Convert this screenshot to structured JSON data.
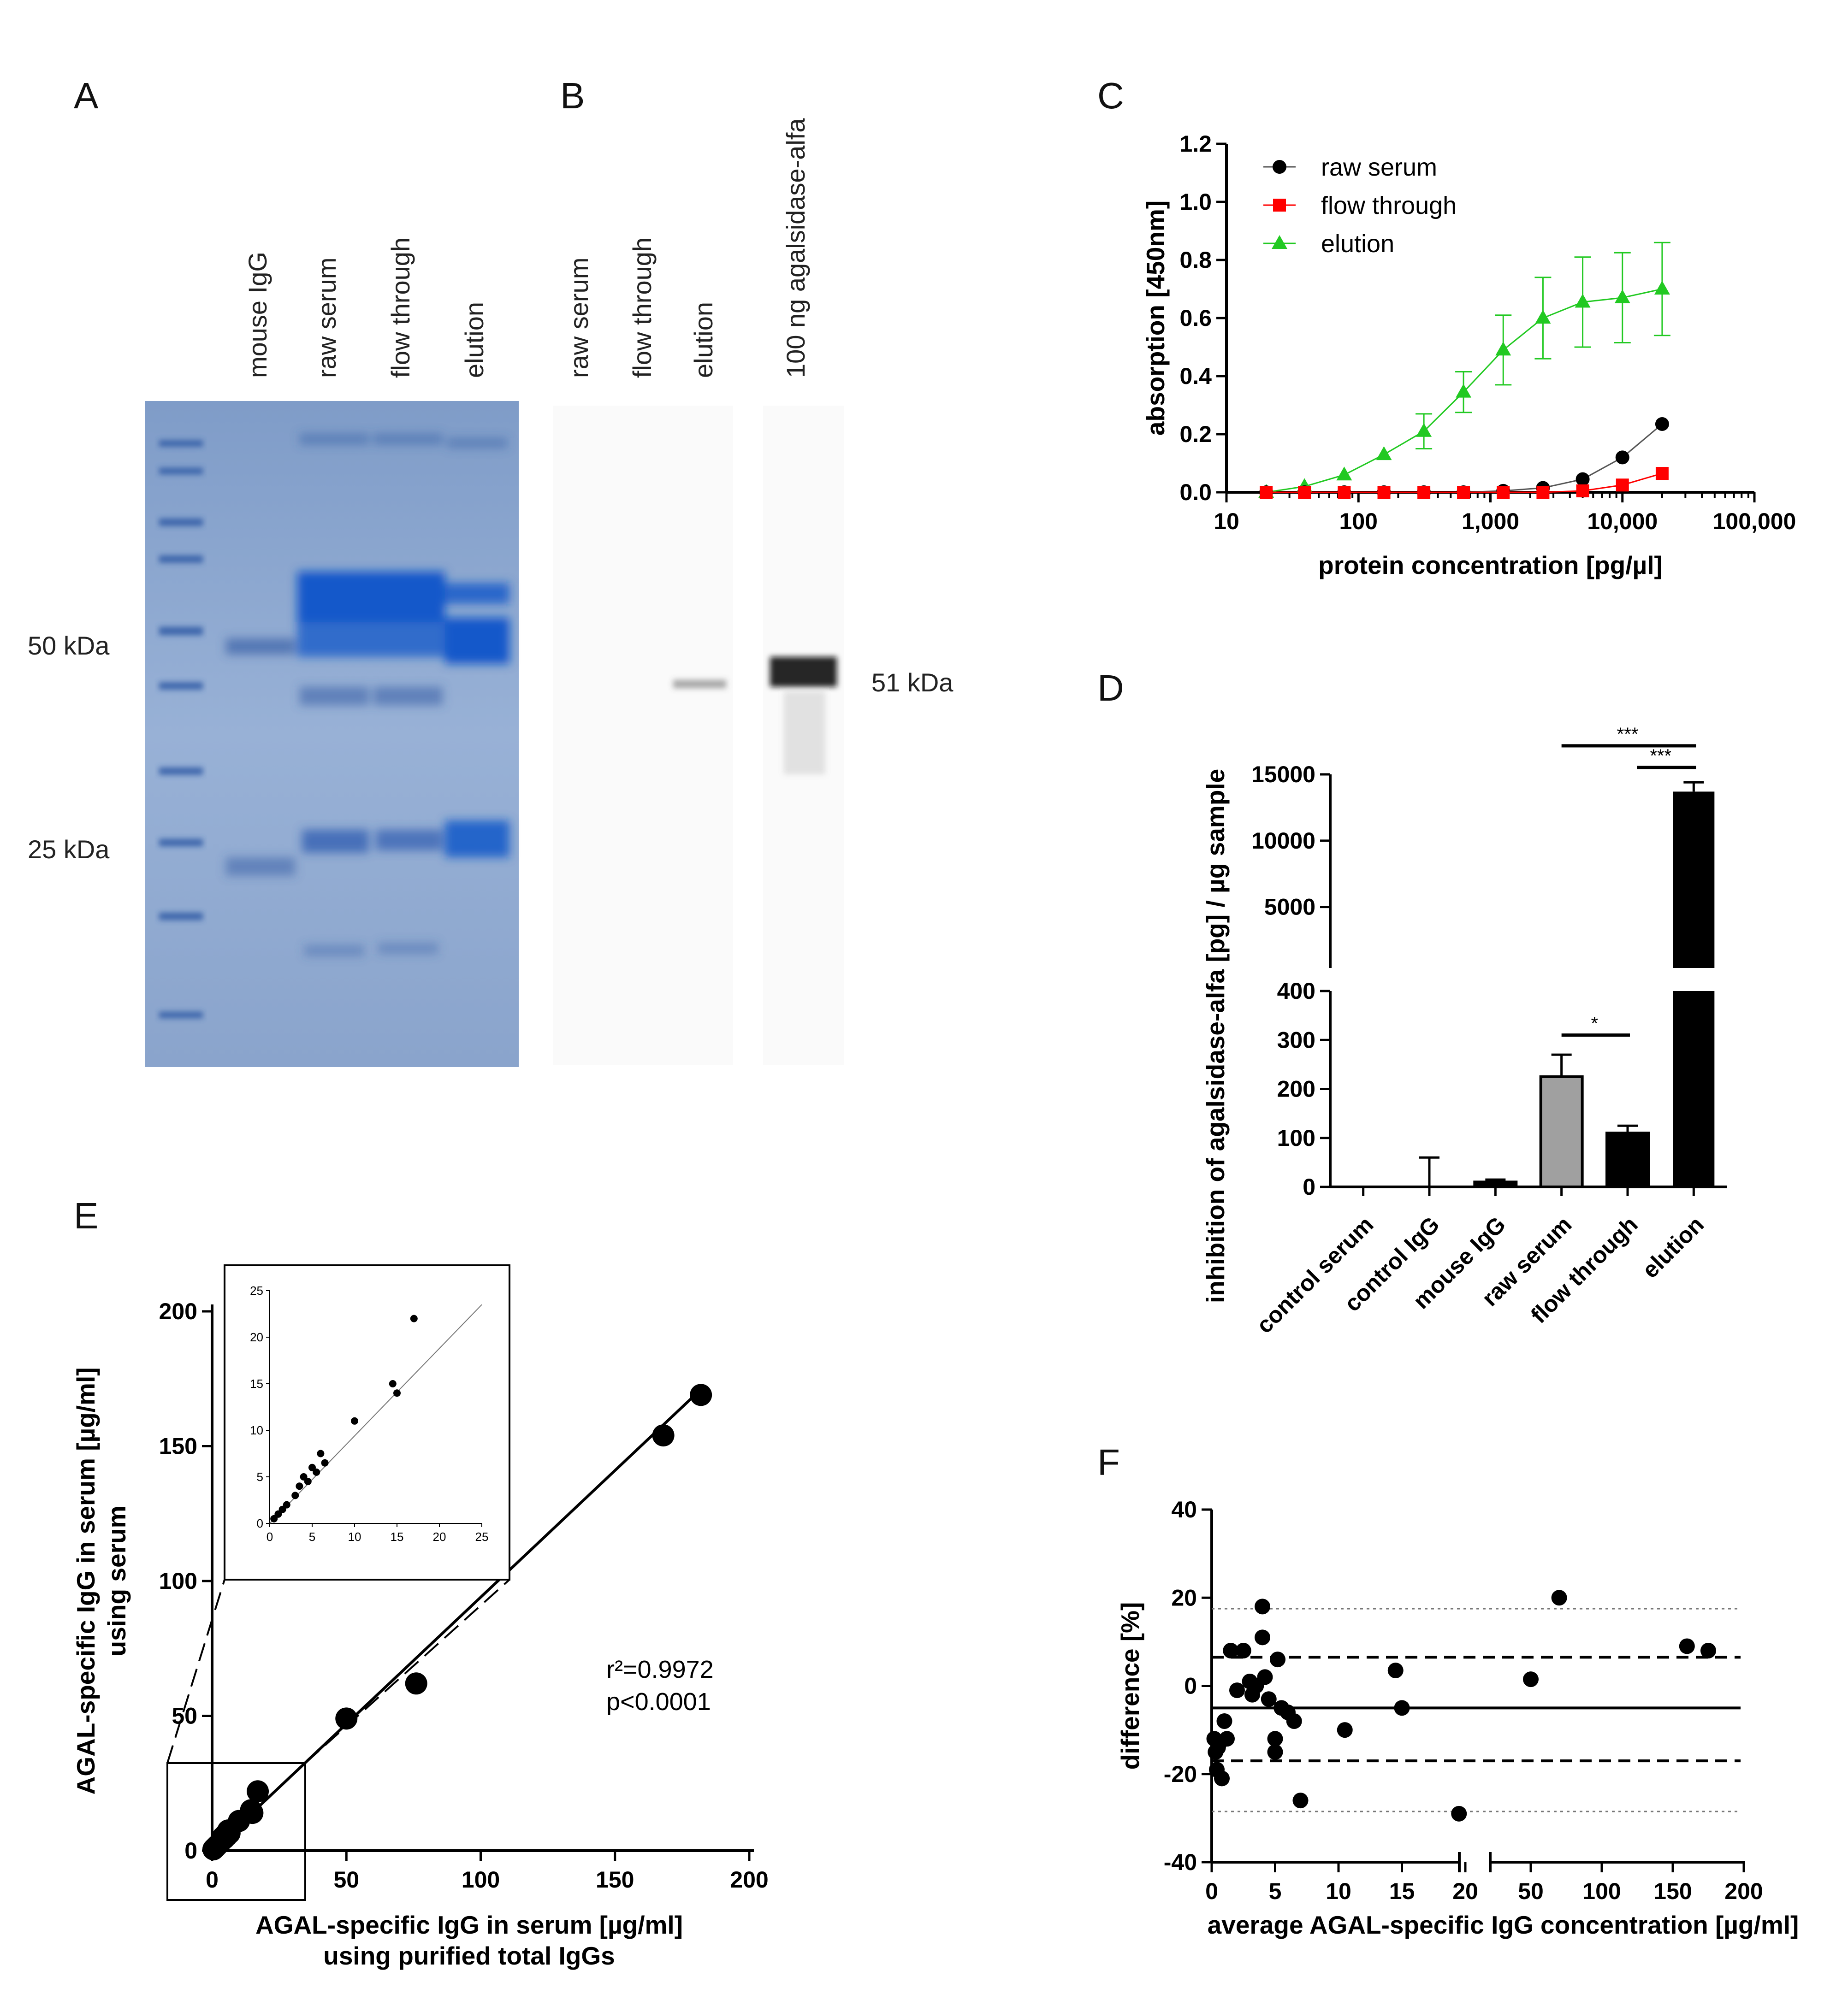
{
  "panels": {
    "A": {
      "label": "A",
      "lane_labels": [
        "mouse IgG",
        "raw serum",
        "flow through",
        "elution"
      ],
      "markers": [
        "50 kDa",
        "25 kDa"
      ]
    },
    "B": {
      "label": "B",
      "lane_labels": [
        "raw serum",
        "flow through",
        "elution",
        "100 ng agalsidase-alfa"
      ],
      "marker": "51 kDa"
    },
    "C": {
      "label": "C"
    },
    "D": {
      "label": "D"
    },
    "E": {
      "label": "E",
      "r2": "r²=0.9972",
      "p": "p<0.0001"
    },
    "F": {
      "label": "F"
    }
  },
  "colors": {
    "raw": "#000000",
    "flow": "#ff0000",
    "elution": "#22c922",
    "gel_bg": "#8fa8d0",
    "bar_gray": "#a0a0a0"
  },
  "chart_data": [
    {
      "id": "C",
      "type": "line",
      "xscale": "log",
      "xlabel": "protein concentration [pg/µl]",
      "ylabel": "absorption [450nm]",
      "xlim": [
        10,
        100000
      ],
      "ylim": [
        0,
        1.2
      ],
      "xticks": [
        "10",
        "100",
        "1,000",
        "10,000",
        "100,000"
      ],
      "yticks": [
        "0.0",
        "0.2",
        "0.4",
        "0.6",
        "0.8",
        "1.0",
        "1.2"
      ],
      "x": [
        20,
        39,
        78,
        156,
        313,
        625,
        1250,
        2500,
        5000,
        10000,
        20000
      ],
      "series": [
        {
          "name": "raw serum",
          "marker": "circle",
          "values": [
            0.0,
            0.0,
            0.0,
            0.0,
            0.0,
            0.0,
            0.005,
            0.015,
            0.045,
            0.12,
            0.235
          ]
        },
        {
          "name": "flow through",
          "marker": "square",
          "values": [
            0.0,
            0.0,
            0.0,
            0.0,
            0.0,
            0.0,
            0.0,
            0.0,
            0.005,
            0.025,
            0.065
          ]
        },
        {
          "name": "elution",
          "marker": "triangle",
          "values": [
            0.0,
            0.02,
            0.06,
            0.13,
            0.21,
            0.345,
            0.49,
            0.6,
            0.655,
            0.67,
            0.7
          ],
          "error": [
            0.0,
            0.0,
            0.0,
            0.0,
            0.06,
            0.07,
            0.12,
            0.14,
            0.155,
            0.155,
            0.16
          ]
        }
      ]
    },
    {
      "id": "D",
      "type": "bar",
      "ylabel": "inhibition of agalsidase-alfa [pg] / µg sample",
      "categories": [
        "control serum",
        "control IgG",
        "mouse IgG",
        "raw serum",
        "flow through",
        "elution"
      ],
      "values": [
        0,
        0,
        10,
        225,
        110,
        13700
      ],
      "error": [
        0,
        60,
        5,
        45,
        15,
        700
      ],
      "lower_axis": {
        "ylim": [
          0,
          400
        ],
        "yticks": [
          "0",
          "100",
          "200",
          "300",
          "400"
        ]
      },
      "upper_axis": {
        "ylim": [
          0,
          15000
        ],
        "yticks": [
          "5000",
          "10000",
          "15000"
        ]
      },
      "significance": [
        {
          "from": "raw serum",
          "to": "flow through",
          "label": "*"
        },
        {
          "from": "flow through",
          "to": "elution",
          "label": "***"
        },
        {
          "from": "raw serum",
          "to": "elution",
          "label": "***"
        }
      ]
    },
    {
      "id": "E",
      "type": "scatter",
      "xlabel": "AGAL-specific IgG in serum [µg/ml]",
      "xlabel2": "using purified total IgGs",
      "ylabel": "AGAL-specific IgG in serum [µg/ml]",
      "ylabel2": "using serum",
      "xlim": [
        0,
        200
      ],
      "ylim": [
        0,
        200
      ],
      "xticks": [
        "0",
        "50",
        "100",
        "150",
        "200"
      ],
      "yticks": [
        "0",
        "50",
        "100",
        "150",
        "200"
      ],
      "x": [
        0.5,
        1,
        1.5,
        2,
        3,
        3.5,
        4,
        4.5,
        5,
        5.5,
        6,
        6.5,
        10,
        14.5,
        15,
        17,
        50,
        76,
        168,
        182
      ],
      "y": [
        0.5,
        1,
        1.5,
        2,
        3,
        4,
        5,
        4.5,
        6,
        5.5,
        7.5,
        6.5,
        11,
        15,
        14,
        22,
        49,
        62,
        154,
        169
      ],
      "fit": [
        [
          0,
          0
        ],
        [
          183,
          172
        ]
      ],
      "inset": {
        "xlim": [
          0,
          25
        ],
        "ylim": [
          0,
          25
        ],
        "xticks": [
          "0",
          "5",
          "10",
          "15",
          "20",
          "25"
        ],
        "yticks": [
          "0",
          "5",
          "10",
          "15",
          "20",
          "25"
        ]
      }
    },
    {
      "id": "F",
      "type": "scatter",
      "xlabel": "average AGAL-specific IgG concentration [µg/ml]",
      "ylabel": "difference [%]",
      "ylim": [
        -40,
        40
      ],
      "yticks": [
        "-40",
        "-20",
        "0",
        "20",
        "40"
      ],
      "xticks_left": [
        "0",
        "5",
        "10",
        "15",
        "20"
      ],
      "xticks_right": [
        "50",
        "100",
        "150",
        "200"
      ],
      "bias": -5,
      "loa": [
        6.5,
        -17
      ],
      "ci_lines": [
        17.5,
        -28.5
      ],
      "x": [
        0.2,
        0.3,
        0.4,
        0.5,
        0.6,
        0.8,
        1,
        1.2,
        1.5,
        2,
        2.5,
        3,
        3.2,
        3.5,
        4,
        4,
        4.2,
        4.5,
        5,
        5,
        5.2,
        5.5,
        6,
        6.5,
        7,
        10.5,
        14.5,
        15,
        19.5,
        50,
        70,
        160,
        175
      ],
      "y": [
        -12,
        -15,
        -19,
        -14,
        -13,
        -21,
        -8,
        -12,
        8,
        -1,
        8,
        1,
        -2,
        0,
        18,
        11,
        2,
        -3,
        -15,
        -12,
        6,
        -5,
        -6,
        -8,
        -26,
        -10,
        3.5,
        -5,
        -29,
        1.5,
        20,
        9,
        8
      ]
    }
  ]
}
